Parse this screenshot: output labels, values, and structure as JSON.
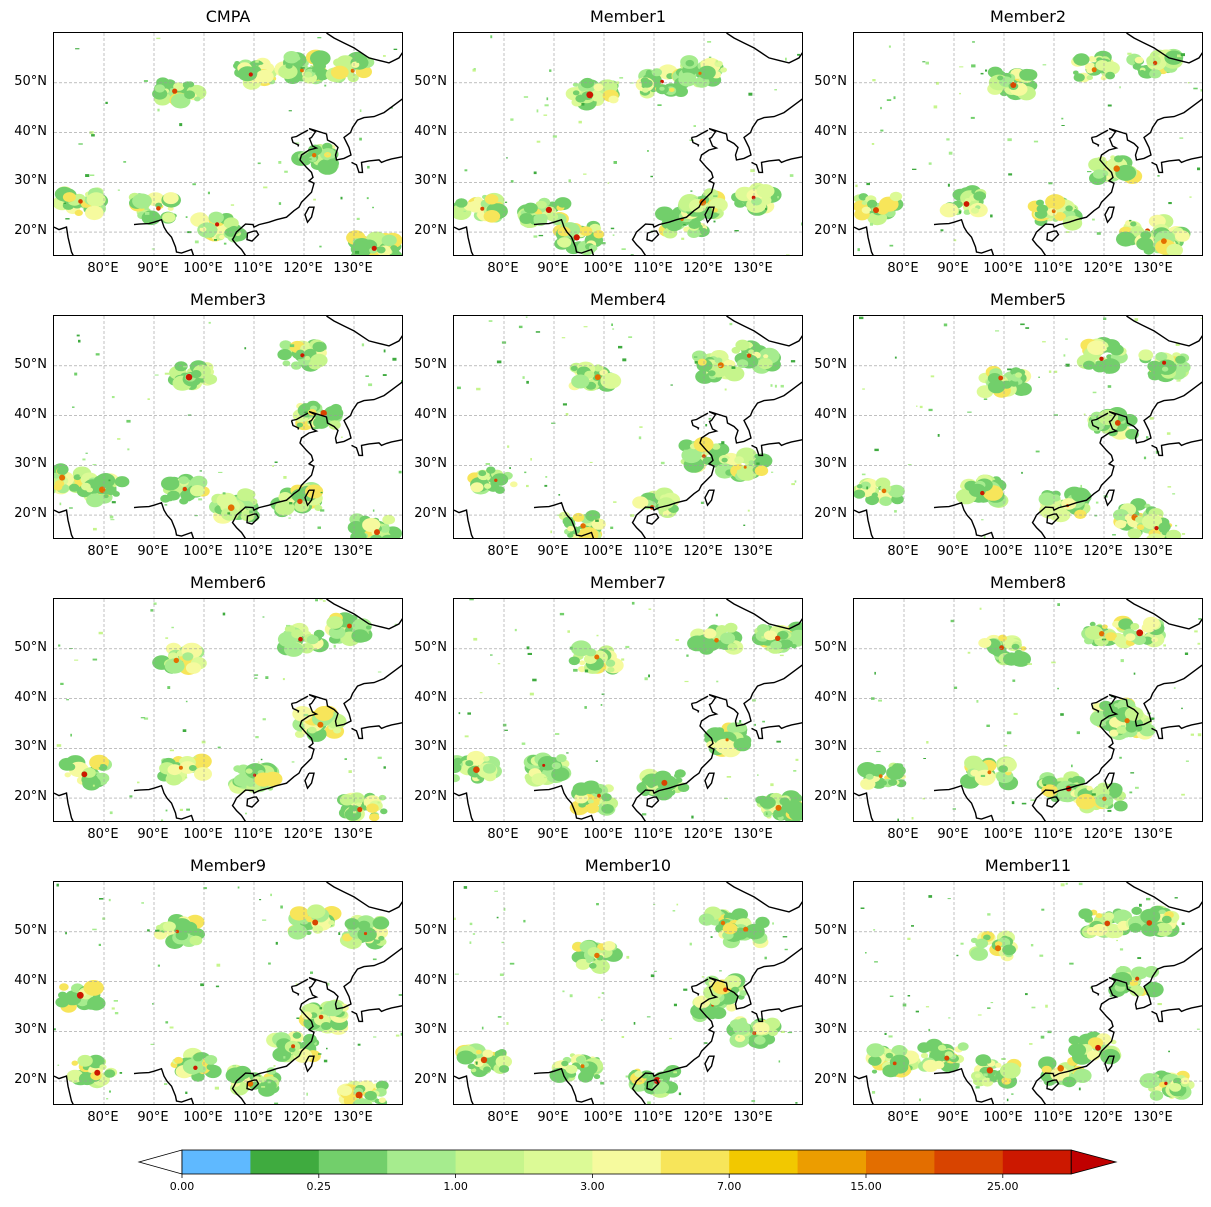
{
  "figure": {
    "panels": [
      {
        "title": "CMPA"
      },
      {
        "title": "Member1"
      },
      {
        "title": "Member2"
      },
      {
        "title": "Member3"
      },
      {
        "title": "Member4"
      },
      {
        "title": "Member5"
      },
      {
        "title": "Member6"
      },
      {
        "title": "Member7"
      },
      {
        "title": "Member8"
      },
      {
        "title": "Member9"
      },
      {
        "title": "Member10"
      },
      {
        "title": "Member11"
      }
    ],
    "lat_ticks": [
      "20°N",
      "30°N",
      "40°N",
      "50°N"
    ],
    "lat_values": [
      20,
      30,
      40,
      50
    ],
    "lon_ticks": [
      "80°E",
      "90°E",
      "100°E",
      "110°E",
      "120°E",
      "130°E"
    ],
    "lon_values": [
      80,
      90,
      100,
      110,
      120,
      130
    ],
    "extent": {
      "lon_min": 70,
      "lon_max": 140,
      "lat_min": 15,
      "lat_max": 60
    }
  },
  "colorbar": {
    "colors": [
      "#ffffff",
      "#5fb9ff",
      "#3fab3f",
      "#72cf6b",
      "#a6ec8e",
      "#c6f58c",
      "#dcfa96",
      "#f6fa9e",
      "#f7e55a",
      "#f2c800",
      "#ec9d00",
      "#e36e00",
      "#d84400",
      "#cc1800",
      "#c00000"
    ],
    "tick_labels": [
      "0.00",
      "0.25",
      "1.00",
      "3.00",
      "7.00",
      "15.00",
      "25.00"
    ],
    "tick_box_index": [
      0,
      2,
      4,
      6,
      8,
      10,
      12
    ]
  }
}
